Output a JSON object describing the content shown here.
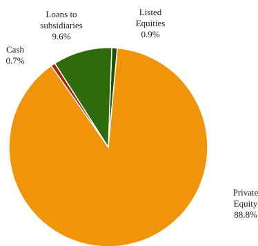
{
  "chart_data": {
    "type": "pie",
    "title": "",
    "slices": [
      {
        "label_lines": [
          "Listed",
          "Equities"
        ],
        "value_label": "0.9%",
        "value": 0.9,
        "color": "#1f4e0f"
      },
      {
        "label_lines": [
          "Private",
          "Equity"
        ],
        "value_label": "88.8%",
        "value": 88.8,
        "color": "#f0950a"
      },
      {
        "label_lines": [
          "Cash"
        ],
        "value_label": "0.7%",
        "value": 0.7,
        "color": "#b0200c"
      },
      {
        "label_lines": [
          "Loans to",
          "subsidiaries"
        ],
        "value_label": "9.6%",
        "value": 9.6,
        "color": "#2e6b0a"
      }
    ]
  }
}
